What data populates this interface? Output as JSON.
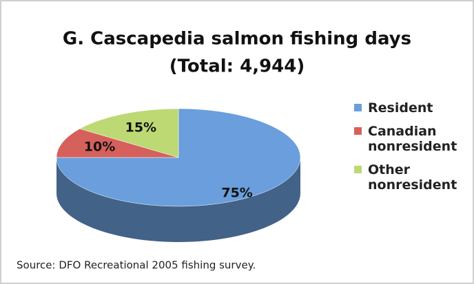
{
  "chart_data": {
    "type": "pie",
    "title": "G. Cascapedia salmon fishing days",
    "subtitle": "(Total: 4,944)",
    "categories": [
      "Resident",
      "Canadian nonresident",
      "Other nonresident"
    ],
    "values": [
      75,
      10,
      15
    ],
    "value_labels": [
      "75%",
      "10%",
      "15%"
    ],
    "colors": [
      "#6a9edc",
      "#d6605c",
      "#bcd974"
    ],
    "legend": "right",
    "three_d": true,
    "source": "Source: DFO Recreational 2005 fishing survey."
  }
}
